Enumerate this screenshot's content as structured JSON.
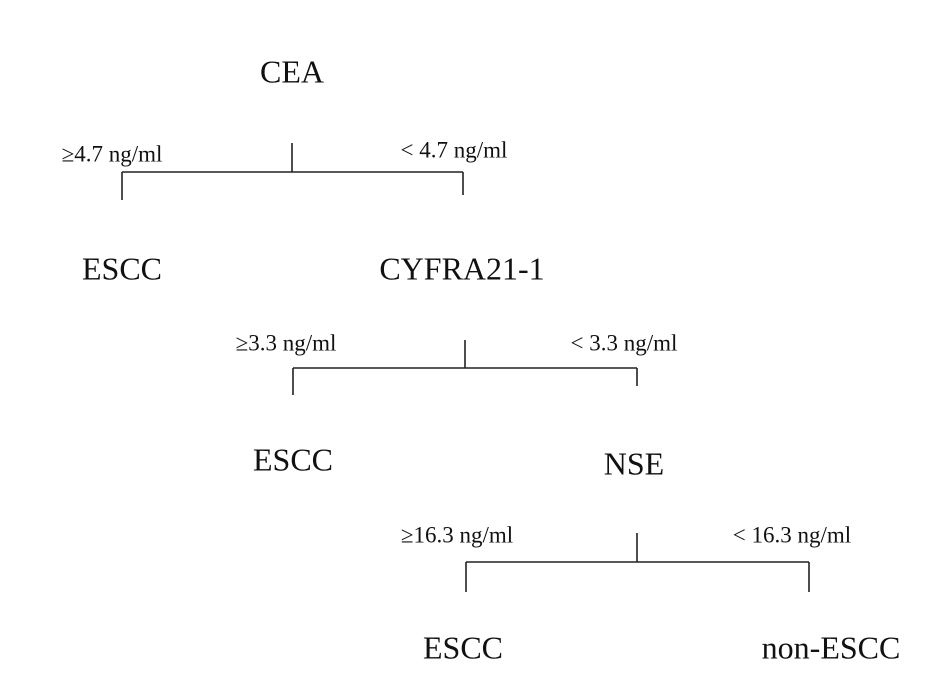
{
  "splits": [
    {
      "marker": "CEA",
      "high": "≥4.7 ng/ml",
      "low": "< 4.7 ng/ml",
      "high_result": "ESCC"
    },
    {
      "marker": "CYFRA21-1",
      "high": "≥3.3 ng/ml",
      "low": "< 3.3 ng/ml",
      "high_result": "ESCC"
    },
    {
      "marker": "NSE",
      "high": "≥16.3 ng/ml",
      "low": "< 16.3 ng/ml",
      "high_result": "ESCC"
    }
  ],
  "final_result": "non-ESCC"
}
